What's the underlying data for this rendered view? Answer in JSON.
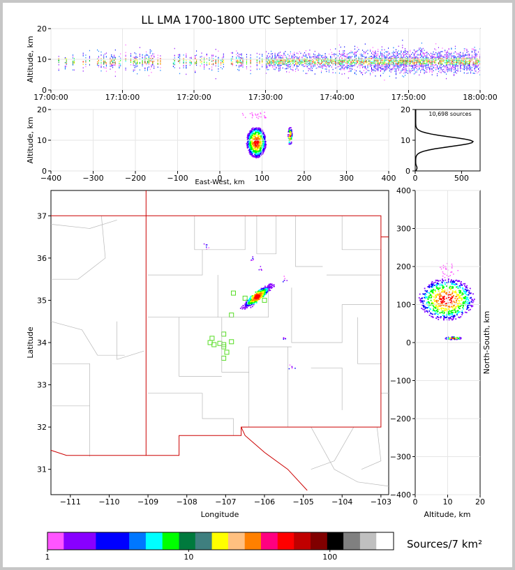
{
  "chart_data": {
    "title": "LL LMA 1700-1800 UTC September 17, 2024",
    "type": "lightning-mapping-array",
    "panels": {
      "time_height": {
        "ylabel": "Altitude, km",
        "ylim": [
          0,
          20
        ],
        "yticks": [
          "0",
          "10",
          "20"
        ],
        "xticks": [
          "17:00:00",
          "17:10:00",
          "17:20:00",
          "17:30:00",
          "17:40:00",
          "17:50:00",
          "18:00:00"
        ],
        "xlim_minutes": [
          0,
          60
        ]
      },
      "ew_altitude": {
        "xlabel": "East-West, km",
        "ylabel": "Altitude, km",
        "xlim": [
          -400,
          400
        ],
        "ylim": [
          0,
          20
        ],
        "xticks": [
          "−400",
          "−300",
          "−200",
          "−100",
          "0",
          "100",
          "200",
          "300",
          "400"
        ],
        "yticks": [
          "0",
          "10",
          "20"
        ]
      },
      "histogram": {
        "label": "10,698 sources",
        "xticks": [
          "0",
          "500"
        ],
        "yticks": [
          "0",
          "10",
          "20"
        ],
        "xlim": [
          0,
          700
        ],
        "ylim": [
          0,
          20
        ]
      },
      "plan_view": {
        "xlabel": "Longitude",
        "ylabel": "Latitude",
        "xlim": [
          -111.5,
          -102.8
        ],
        "ylim": [
          30.4,
          37.6
        ],
        "xticks": [
          "−111",
          "−110",
          "−109",
          "−108",
          "−107",
          "−106",
          "−105",
          "−104",
          "−103"
        ],
        "yticks": [
          "31",
          "32",
          "33",
          "34",
          "35",
          "36",
          "37"
        ],
        "stations": [
          [
            -106.8,
            35.17
          ],
          [
            -106.5,
            35.05
          ],
          [
            -106.0,
            35.0
          ],
          [
            -106.85,
            34.65
          ],
          [
            -107.05,
            34.2
          ],
          [
            -107.35,
            34.1
          ],
          [
            -107.4,
            34.0
          ],
          [
            -107.3,
            33.95
          ],
          [
            -107.15,
            33.98
          ],
          [
            -107.05,
            33.95
          ],
          [
            -106.85,
            34.02
          ],
          [
            -107.05,
            33.9
          ],
          [
            -106.97,
            33.77
          ],
          [
            -107.05,
            33.63
          ]
        ]
      },
      "ns_altitude": {
        "xlabel": "Altitude, km",
        "ylabel": "North-South, km",
        "xlim": [
          0,
          20
        ],
        "ylim": [
          -400,
          400
        ],
        "xticks": [
          "0",
          "10",
          "20"
        ],
        "yticks": [
          "400",
          "300",
          "200",
          "100",
          "0",
          "−100",
          "−200",
          "−300",
          "−400"
        ]
      }
    },
    "colorbar": {
      "label": "Sources/7 km²",
      "ticks": [
        "1",
        "10",
        "100"
      ],
      "colors": [
        "#ff55ff",
        "#8800ff",
        "#8800ff",
        "#0000ff",
        "#0000ff",
        "#0077ff",
        "#00ffff",
        "#00ff00",
        "#007a3d",
        "#3f7f7f",
        "#ffff00",
        "#ffc080",
        "#ff8000",
        "#ff0080",
        "#ff0000",
        "#c00000",
        "#800000",
        "#000000",
        "#808080",
        "#c0c0c0",
        "#ffffff"
      ]
    }
  }
}
